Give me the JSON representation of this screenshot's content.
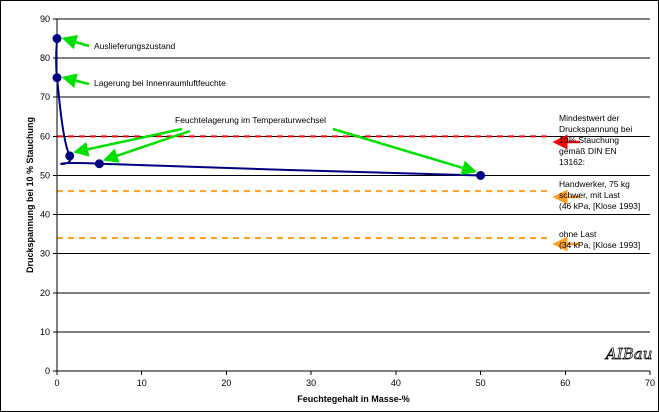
{
  "chart_data": {
    "type": "line",
    "xlabel": "Feuchtegehalt in Masse-%",
    "ylabel": "Druckspannung bei 10 % Stauchung",
    "xlim": [
      0,
      70
    ],
    "ylim": [
      0,
      90
    ],
    "xticks": [
      0,
      10,
      20,
      30,
      40,
      50,
      60,
      70
    ],
    "yticks": [
      0,
      10,
      20,
      30,
      40,
      50,
      60,
      70,
      80,
      90
    ],
    "grid": "horizontal",
    "series": [
      {
        "color": "#000080",
        "points": [
          {
            "x": 0,
            "y": 85
          },
          {
            "x": 0,
            "y": 75
          },
          {
            "x": 1.5,
            "y": 55
          },
          {
            "x": 5,
            "y": 53
          },
          {
            "x": 50,
            "y": 50
          }
        ]
      }
    ],
    "reference_lines": [
      {
        "y": 60,
        "color": "#ff0000",
        "label": [
          "Mindestwert der",
          "Druckspannung bei",
          "10% Stauchung",
          "gemäß DIN EN",
          "13162:"
        ]
      },
      {
        "y": 46,
        "color": "#ffa020",
        "label": [
          "Handwerker, 75 kg",
          "schwer, mit Last",
          "(46 kPa, [Klose 1993]"
        ]
      },
      {
        "y": 34,
        "color": "#ffa020",
        "label": [
          "ohne Last",
          "(34 kPa, [Klose 1993]"
        ]
      }
    ],
    "annotations": [
      {
        "text": "Auslieferungszustand"
      },
      {
        "text": "Lagerung bei Innenraumluftfeuchte"
      },
      {
        "text": "Feuchtelagerung im Temperaturwechsel"
      }
    ],
    "colors": {
      "arrow_green": "#00e000",
      "arrow_red": "#ff0000",
      "arrow_orange": "#ffa020",
      "grid": "#000000"
    }
  },
  "logo": {
    "text": "AIBau"
  }
}
